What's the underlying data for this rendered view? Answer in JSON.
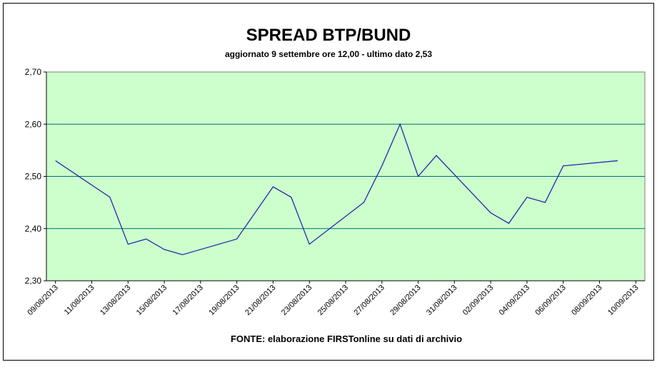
{
  "chart_data": {
    "type": "line",
    "title": "SPREAD BTP/BUND",
    "subtitle": "aggiornato 9 settembre ore 12,00 - ultimo dato 2,53",
    "source": "FONTE:  elaborazione FIRSTonline su dati di archivio",
    "x": [
      "09/08/2013",
      "12/08/2013",
      "13/08/2013",
      "14/08/2013",
      "15/08/2013",
      "16/08/2013",
      "19/08/2013",
      "20/08/2013",
      "21/08/2013",
      "22/08/2013",
      "23/08/2013",
      "26/08/2013",
      "27/08/2013",
      "28/08/2013",
      "29/08/2013",
      "30/08/2013",
      "02/09/2013",
      "03/09/2013",
      "04/09/2013",
      "05/09/2013",
      "06/09/2013",
      "09/09/2013"
    ],
    "series": [
      {
        "color": "#1a1aa6",
        "values": [
          2.53,
          2.46,
          2.37,
          2.38,
          2.36,
          2.35,
          2.38,
          2.43,
          2.48,
          2.46,
          2.37,
          2.45,
          2.52,
          2.6,
          2.5,
          2.54,
          2.43,
          2.41,
          2.46,
          2.45,
          2.52,
          2.53
        ]
      }
    ],
    "xticks": [
      "09/08/2013",
      "11/08/2013",
      "13/08/2013",
      "15/08/2013",
      "17/08/2013",
      "19/08/2013",
      "21/08/2013",
      "23/08/2013",
      "25/08/2013",
      "27/08/2013",
      "29/08/2013",
      "31/08/2013",
      "02/09/2013",
      "04/09/2013",
      "06/09/2013",
      "08/09/2013",
      "10/09/2013"
    ],
    "ylim": [
      2.3,
      2.7
    ],
    "yticks": [
      {
        "value": 2.3,
        "label": "2,30"
      },
      {
        "value": 2.4,
        "label": "2,40"
      },
      {
        "value": 2.5,
        "label": "2,50"
      },
      {
        "value": 2.6,
        "label": "2,60"
      },
      {
        "value": 2.7,
        "label": "2,70"
      }
    ],
    "grid": true,
    "plot_background": "#ccffcc"
  }
}
